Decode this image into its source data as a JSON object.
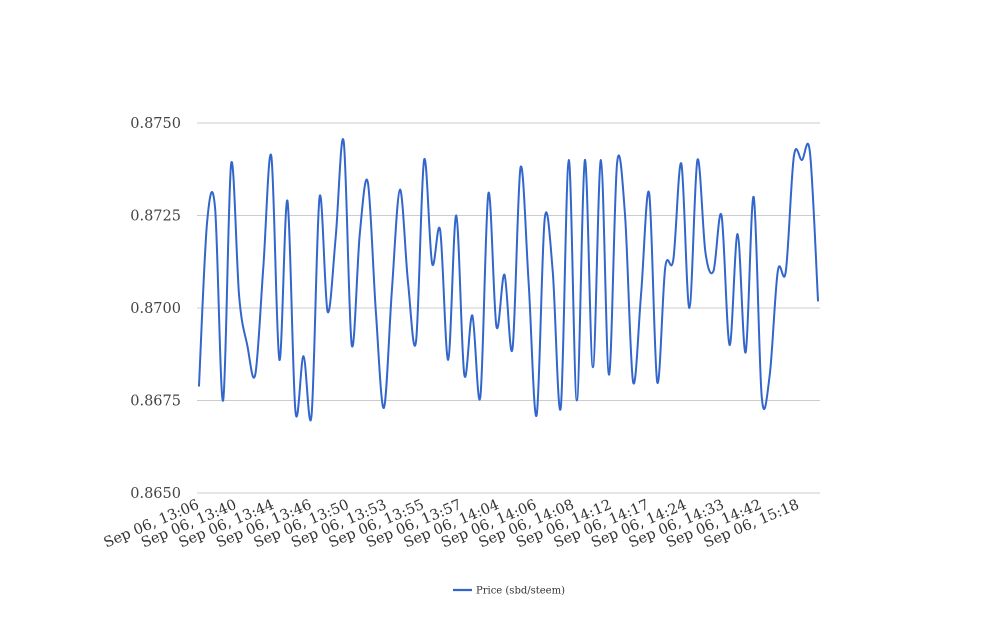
{
  "chart_data": {
    "type": "line",
    "title": "",
    "xlabel": "",
    "ylabel": "",
    "ylim": [
      0.865,
      0.875
    ],
    "yticks": [
      "0.8650",
      "0.8675",
      "0.8700",
      "0.8725",
      "0.8750"
    ],
    "grid": true,
    "legend_position": "bottom",
    "line_color": "#3366cc",
    "x_tick_labels": [
      "Sep 06, 13:06",
      "Sep 06, 13:40",
      "Sep 06, 13:44",
      "Sep 06, 13:46",
      "Sep 06, 13:50",
      "Sep 06, 13:53",
      "Sep 06, 13:55",
      "Sep 06, 13:57",
      "Sep 06, 14:04",
      "Sep 06, 14:06",
      "Sep 06, 14:08",
      "Sep 06, 14:12",
      "Sep 06, 14:17",
      "Sep 06, 14:24",
      "Sep 06, 14:33",
      "Sep 06, 14:42",
      "Sep 06, 15:18"
    ],
    "series": [
      {
        "name": "Price (sbd/steem)",
        "values": [
          0.8679,
          0.8723,
          0.8727,
          0.8675,
          0.8739,
          0.8703,
          0.869,
          0.8682,
          0.8711,
          0.8741,
          0.8686,
          0.8729,
          0.8672,
          0.8687,
          0.8671,
          0.873,
          0.8699,
          0.8719,
          0.8745,
          0.869,
          0.872,
          0.8734,
          0.8699,
          0.8673,
          0.8705,
          0.8732,
          0.8707,
          0.8691,
          0.874,
          0.8712,
          0.8721,
          0.8686,
          0.8725,
          0.8682,
          0.8698,
          0.8676,
          0.8731,
          0.8695,
          0.8709,
          0.8689,
          0.8738,
          0.8707,
          0.8671,
          0.8724,
          0.871,
          0.8673,
          0.874,
          0.8675,
          0.874,
          0.8684,
          0.874,
          0.8682,
          0.8739,
          0.8725,
          0.868,
          0.8704,
          0.8731,
          0.868,
          0.8711,
          0.8713,
          0.8739,
          0.87,
          0.874,
          0.8715,
          0.871,
          0.8725,
          0.869,
          0.872,
          0.8688,
          0.873,
          0.8676,
          0.8682,
          0.871,
          0.871,
          0.8741,
          0.874,
          0.8742,
          0.8702
        ]
      }
    ]
  }
}
